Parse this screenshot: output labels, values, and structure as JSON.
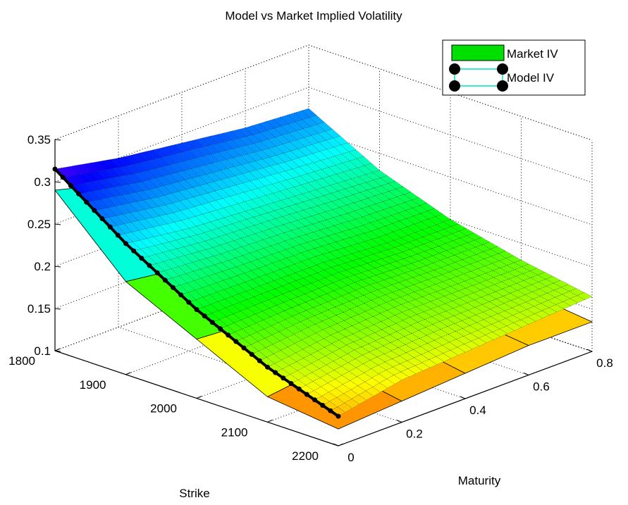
{
  "chart_data": {
    "type": "surface3d",
    "title": "Model vs Market Implied Volatility",
    "xlabel": "Strike",
    "ylabel": "Maturity",
    "zlabel": "",
    "xlim": [
      1800,
      2200
    ],
    "ylim": [
      0,
      0.8
    ],
    "zlim": [
      0.1,
      0.35
    ],
    "xticks": [
      "1800",
      "1900",
      "2000",
      "2100",
      "2200"
    ],
    "yticks": [
      "0",
      "0.2",
      "0.4",
      "0.6",
      "0.8"
    ],
    "zticks": [
      "0.1",
      "0.15",
      "0.2",
      "0.25",
      "0.3",
      "0.35"
    ],
    "grid": true,
    "legend_position": "top-right",
    "legend": [
      {
        "label": "Market IV",
        "style": "surface",
        "color": "#00e000"
      },
      {
        "label": "Model IV",
        "style": "mesh-with-markers",
        "color": "#00e0c0",
        "marker_color": "#000000"
      }
    ],
    "series": [
      {
        "name": "Market IV",
        "strikes": [
          1800,
          1900,
          2000,
          2100,
          2200
        ],
        "maturities": [
          0.0,
          0.2,
          0.4,
          0.6,
          0.8
        ],
        "values": [
          [
            0.29,
            0.27,
            0.25,
            0.24,
            0.23
          ],
          [
            0.21,
            0.2,
            0.195,
            0.19,
            0.185
          ],
          [
            0.17,
            0.165,
            0.165,
            0.16,
            0.16
          ],
          [
            0.13,
            0.14,
            0.145,
            0.145,
            0.145
          ],
          [
            0.12,
            0.125,
            0.13,
            0.135,
            0.135
          ]
        ]
      },
      {
        "name": "Model IV",
        "strikes": [
          1800,
          1900,
          2000,
          2100,
          2200
        ],
        "maturities": [
          0.0,
          0.2,
          0.4,
          0.6,
          0.8
        ],
        "values": [
          [
            0.315,
            0.3,
            0.29,
            0.28,
            0.275
          ],
          [
            0.255,
            0.245,
            0.24,
            0.235,
            0.23
          ],
          [
            0.205,
            0.205,
            0.205,
            0.2,
            0.2
          ],
          [
            0.165,
            0.175,
            0.18,
            0.18,
            0.18
          ],
          [
            0.135,
            0.15,
            0.155,
            0.16,
            0.165
          ]
        ]
      }
    ]
  },
  "colors": {
    "background": "#ffffff",
    "axis": "#000000",
    "grid": "#000000",
    "colormap": "hsv"
  }
}
